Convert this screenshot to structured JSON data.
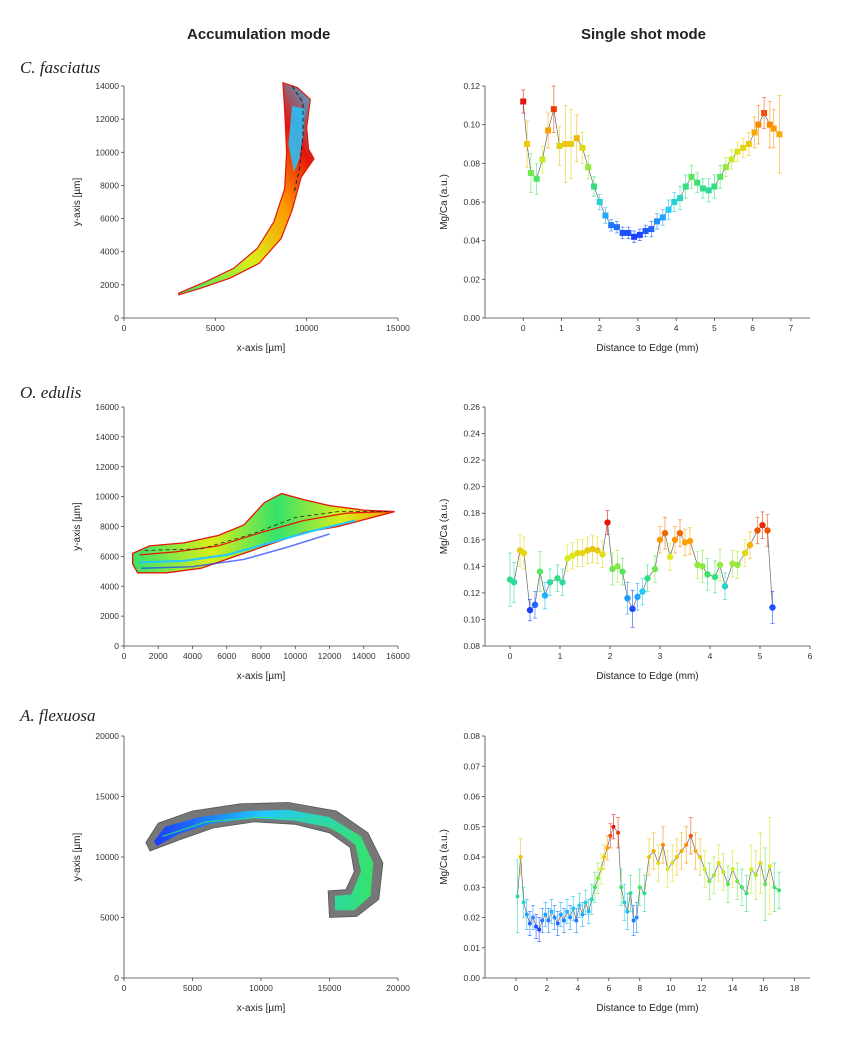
{
  "headers": {
    "left": "Accumulation mode",
    "right": "Single shot mode"
  },
  "species": [
    "C. fasciatus",
    "O. edulis",
    "A. flexuosa"
  ],
  "chart_data": [
    {
      "id": "map1",
      "type": "heatmap",
      "xlabel": "x-axis [µm]",
      "ylabel": "y-axis [µm]",
      "xlim": [
        0,
        15000
      ],
      "ylim": [
        0,
        14000
      ],
      "xticks": [
        0,
        5000,
        10000,
        15000
      ],
      "yticks": [
        0,
        2000,
        4000,
        6000,
        8000,
        10000,
        12000,
        14000
      ],
      "colormap": [
        "#1a3cff",
        "#22c8ff",
        "#35e36a",
        "#d9ee1a",
        "#ff9a00",
        "#e6140a"
      ]
    },
    {
      "id": "ss1",
      "type": "scatter",
      "xlabel": "Distance to Edge (mm)",
      "ylabel": "Mg/Ca (a.u.)",
      "xlim": [
        -1,
        7.5
      ],
      "ylim": [
        0,
        0.12
      ],
      "marker": "square",
      "xticks": [
        0,
        1,
        2,
        3,
        4,
        5,
        6,
        7
      ],
      "yticks": [
        0.0,
        0.02,
        0.04,
        0.06,
        0.08,
        0.1,
        0.12
      ],
      "x": [
        0,
        0.1,
        0.2,
        0.35,
        0.5,
        0.65,
        0.8,
        0.95,
        1.1,
        1.25,
        1.4,
        1.55,
        1.7,
        1.85,
        2.0,
        2.15,
        2.3,
        2.45,
        2.6,
        2.75,
        2.9,
        3.05,
        3.2,
        3.35,
        3.5,
        3.65,
        3.8,
        3.95,
        4.1,
        4.25,
        4.4,
        4.55,
        4.7,
        4.85,
        5.0,
        5.15,
        5.3,
        5.45,
        5.6,
        5.75,
        5.9,
        6.05,
        6.15,
        6.3,
        6.45,
        6.55,
        6.7
      ],
      "y": [
        0.112,
        0.09,
        0.075,
        0.072,
        0.082,
        0.097,
        0.108,
        0.089,
        0.09,
        0.09,
        0.093,
        0.088,
        0.078,
        0.068,
        0.06,
        0.053,
        0.048,
        0.047,
        0.044,
        0.044,
        0.042,
        0.043,
        0.045,
        0.046,
        0.05,
        0.052,
        0.056,
        0.06,
        0.062,
        0.068,
        0.073,
        0.07,
        0.067,
        0.066,
        0.068,
        0.073,
        0.078,
        0.082,
        0.086,
        0.088,
        0.09,
        0.096,
        0.1,
        0.106,
        0.1,
        0.098,
        0.095
      ],
      "err": [
        0.006,
        0.012,
        0.01,
        0.008,
        0.007,
        0.009,
        0.012,
        0.01,
        0.02,
        0.018,
        0.012,
        0.008,
        0.006,
        0.005,
        0.004,
        0.004,
        0.003,
        0.003,
        0.003,
        0.003,
        0.003,
        0.003,
        0.003,
        0.004,
        0.004,
        0.004,
        0.005,
        0.005,
        0.006,
        0.006,
        0.006,
        0.005,
        0.005,
        0.006,
        0.006,
        0.006,
        0.005,
        0.005,
        0.005,
        0.005,
        0.006,
        0.008,
        0.01,
        0.008,
        0.012,
        0.01,
        0.02
      ]
    },
    {
      "id": "map2",
      "type": "heatmap",
      "xlabel": "x-axis [µm]",
      "ylabel": "y-axis [µm]",
      "xlim": [
        0,
        16000
      ],
      "ylim": [
        0,
        16000
      ],
      "xticks": [
        0,
        2000,
        4000,
        6000,
        8000,
        10000,
        12000,
        14000,
        16000
      ],
      "yticks": [
        0,
        2000,
        4000,
        6000,
        8000,
        10000,
        12000,
        14000,
        16000
      ],
      "colormap": [
        "#1a3cff",
        "#22c8ff",
        "#35e36a",
        "#d9ee1a",
        "#ff9a00",
        "#e6140a"
      ]
    },
    {
      "id": "ss2",
      "type": "scatter",
      "xlabel": "Distance to Edge (mm)",
      "ylabel": "Mg/Ca (a.u.)",
      "xlim": [
        -0.5,
        6
      ],
      "ylim": [
        0.08,
        0.26
      ],
      "marker": "circle",
      "xticks": [
        0,
        1,
        2,
        3,
        4,
        5,
        6
      ],
      "yticks": [
        0.08,
        0.1,
        0.12,
        0.14,
        0.16,
        0.18,
        0.2,
        0.22,
        0.24,
        0.26
      ],
      "x": [
        0,
        0.08,
        0.2,
        0.28,
        0.4,
        0.5,
        0.6,
        0.7,
        0.8,
        0.95,
        1.05,
        1.15,
        1.25,
        1.35,
        1.45,
        1.55,
        1.65,
        1.75,
        1.85,
        1.95,
        2.05,
        2.15,
        2.25,
        2.35,
        2.45,
        2.55,
        2.65,
        2.75,
        2.9,
        3.0,
        3.1,
        3.2,
        3.3,
        3.4,
        3.5,
        3.6,
        3.75,
        3.85,
        3.95,
        4.1,
        4.2,
        4.3,
        4.45,
        4.55,
        4.7,
        4.8,
        4.95,
        5.05,
        5.15,
        5.25
      ],
      "y": [
        0.13,
        0.128,
        0.152,
        0.15,
        0.107,
        0.111,
        0.136,
        0.118,
        0.128,
        0.131,
        0.128,
        0.146,
        0.148,
        0.15,
        0.15,
        0.152,
        0.153,
        0.152,
        0.149,
        0.173,
        0.138,
        0.14,
        0.136,
        0.116,
        0.108,
        0.117,
        0.121,
        0.131,
        0.138,
        0.16,
        0.165,
        0.147,
        0.16,
        0.165,
        0.158,
        0.159,
        0.141,
        0.14,
        0.134,
        0.132,
        0.141,
        0.125,
        0.142,
        0.141,
        0.15,
        0.156,
        0.167,
        0.171,
        0.167,
        0.109
      ],
      "err": [
        0.02,
        0.015,
        0.012,
        0.012,
        0.008,
        0.01,
        0.015,
        0.01,
        0.01,
        0.01,
        0.01,
        0.01,
        0.01,
        0.01,
        0.01,
        0.01,
        0.01,
        0.01,
        0.01,
        0.009,
        0.012,
        0.012,
        0.01,
        0.012,
        0.014,
        0.01,
        0.01,
        0.01,
        0.01,
        0.01,
        0.012,
        0.01,
        0.01,
        0.01,
        0.01,
        0.01,
        0.01,
        0.012,
        0.012,
        0.012,
        0.012,
        0.01,
        0.01,
        0.01,
        0.01,
        0.01,
        0.01,
        0.01,
        0.012,
        0.012
      ]
    },
    {
      "id": "map3",
      "type": "heatmap",
      "xlabel": "x-axis [µm]",
      "ylabel": "y-axis [µm]",
      "xlim": [
        0,
        20000
      ],
      "ylim": [
        0,
        20000
      ],
      "xticks": [
        0,
        5000,
        10000,
        15000,
        20000
      ],
      "yticks": [
        0,
        5000,
        10000,
        15000,
        20000
      ],
      "colormap": [
        "#1a3cff",
        "#22c8ff",
        "#35e36a",
        "#d9ee1a",
        "#ff9a00",
        "#e6140a"
      ]
    },
    {
      "id": "ss3",
      "type": "scatter",
      "xlabel": "Distance to Edge (mm)",
      "ylabel": "Mg/Ca (a.u.)",
      "xlim": [
        -2,
        19
      ],
      "ylim": [
        0,
        0.08
      ],
      "marker": "dot",
      "xticks": [
        0,
        2,
        4,
        6,
        8,
        10,
        12,
        14,
        16,
        18
      ],
      "yticks": [
        0.0,
        0.01,
        0.02,
        0.03,
        0.04,
        0.05,
        0.06,
        0.07,
        0.08
      ],
      "x": [
        0.1,
        0.3,
        0.5,
        0.7,
        0.9,
        1.1,
        1.3,
        1.5,
        1.7,
        1.9,
        2.1,
        2.3,
        2.5,
        2.7,
        2.9,
        3.1,
        3.3,
        3.5,
        3.7,
        3.9,
        4.1,
        4.3,
        4.5,
        4.7,
        4.9,
        5.1,
        5.3,
        5.5,
        5.7,
        5.9,
        6.1,
        6.3,
        6.6,
        6.8,
        7.0,
        7.2,
        7.4,
        7.6,
        7.8,
        8.0,
        8.3,
        8.6,
        8.9,
        9.2,
        9.5,
        9.8,
        10.1,
        10.4,
        10.7,
        11.0,
        11.3,
        11.6,
        11.9,
        12.2,
        12.5,
        12.8,
        13.1,
        13.4,
        13.7,
        14.0,
        14.3,
        14.6,
        14.9,
        15.2,
        15.5,
        15.8,
        16.1,
        16.4,
        16.7,
        17.0
      ],
      "y": [
        0.027,
        0.04,
        0.025,
        0.021,
        0.018,
        0.02,
        0.017,
        0.016,
        0.019,
        0.021,
        0.019,
        0.022,
        0.02,
        0.018,
        0.021,
        0.019,
        0.022,
        0.02,
        0.023,
        0.019,
        0.024,
        0.021,
        0.025,
        0.022,
        0.026,
        0.03,
        0.033,
        0.036,
        0.04,
        0.043,
        0.047,
        0.05,
        0.048,
        0.03,
        0.025,
        0.022,
        0.028,
        0.019,
        0.02,
        0.03,
        0.028,
        0.04,
        0.042,
        0.038,
        0.044,
        0.036,
        0.038,
        0.04,
        0.042,
        0.044,
        0.047,
        0.042,
        0.04,
        0.036,
        0.032,
        0.034,
        0.038,
        0.035,
        0.031,
        0.036,
        0.032,
        0.03,
        0.028,
        0.036,
        0.034,
        0.038,
        0.031,
        0.037,
        0.03,
        0.029
      ],
      "err": [
        0.012,
        0.006,
        0.005,
        0.005,
        0.004,
        0.004,
        0.004,
        0.004,
        0.004,
        0.004,
        0.004,
        0.004,
        0.004,
        0.004,
        0.004,
        0.004,
        0.004,
        0.004,
        0.004,
        0.004,
        0.004,
        0.004,
        0.004,
        0.004,
        0.005,
        0.005,
        0.005,
        0.005,
        0.004,
        0.004,
        0.004,
        0.004,
        0.005,
        0.006,
        0.006,
        0.006,
        0.006,
        0.005,
        0.005,
        0.006,
        0.006,
        0.006,
        0.006,
        0.006,
        0.006,
        0.006,
        0.006,
        0.006,
        0.006,
        0.006,
        0.006,
        0.006,
        0.006,
        0.006,
        0.006,
        0.006,
        0.006,
        0.006,
        0.006,
        0.006,
        0.006,
        0.006,
        0.006,
        0.008,
        0.008,
        0.01,
        0.012,
        0.016,
        0.008,
        0.006
      ]
    }
  ]
}
